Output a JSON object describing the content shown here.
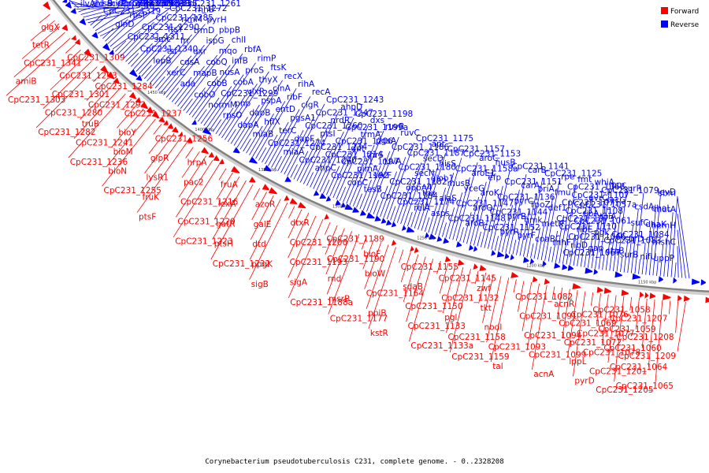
{
  "caption": "Corynebacterium pseudotuberculosis C231, complete genome. - 0..2328208",
  "legend": [
    {
      "label": "Forward",
      "color": "#ff0000"
    },
    {
      "label": "Reverse",
      "color": "#0000ff"
    }
  ],
  "colors": {
    "forward": "#ff0000",
    "reverse": "#0000ff",
    "backbone": "#808080"
  },
  "ticks": [
    "1450 kbp",
    "1400 kbp",
    "1350 kbp",
    "1300 kbp",
    "1250 kbp",
    "1200 kbp",
    "1150 kbp"
  ],
  "reverse_labels": [
    "ilvA",
    "hisB",
    "hisC",
    "trpC2",
    "CpC231_1335",
    "ald",
    "acyP",
    "CpC231_1331",
    "glnB",
    "mutM1",
    "CpC231_1319",
    "CpC231_1328",
    "CpC231_1313",
    "rnc",
    "manP",
    "glnD",
    "rpsP",
    "ffh",
    "rplS",
    "rpsB",
    "CpC231_1311",
    "CpC231_1290",
    "CpC231_1285",
    "CpC231_1272",
    "CpC231_1261",
    "CpC231_1340",
    "smc",
    "ftsY",
    "rimM",
    "rnhB",
    "lepB",
    "tsf",
    "frr",
    "trmD",
    "pyrH",
    "xerC",
    "cdsA",
    "dxr",
    "ispG",
    "pbpB",
    "ada",
    "mapB",
    "cobQ",
    "mqo",
    "chlI",
    "cobO",
    "cobB",
    "nusA",
    "infB",
    "rbfA",
    "normM",
    "CpC231_1299",
    "cobA",
    "proS",
    "rimP",
    "rpsO",
    "pnp",
    "vlxR",
    "thyX",
    "ftsK",
    "dapA",
    "dapB",
    "pspA",
    "cinA",
    "recX",
    "miaB",
    "hflX",
    "entD",
    "ribF",
    "rihA",
    "CpC231_1274",
    "terC",
    "pgsA1",
    "clgR",
    "recA",
    "miaA",
    "dapF",
    "CpC231_1260",
    "CpC231_1247",
    "CpC231_1243",
    "CpC231_1240",
    "CpC231_1234",
    "ptsI",
    "nrdR",
    "ahpD",
    "ahpC",
    "CpC231_1214",
    "CpC231_1206",
    "CpC231_1199a",
    "CpC231_1198",
    "CpC231_1192",
    "CpC231_1197",
    "dut",
    "trmA",
    "dxs",
    "copC",
    "pimA",
    "thrS",
    "pgsA",
    "ruvB",
    "tesB",
    "secF",
    "ruvA",
    "CpC231_1186",
    "ruvC",
    "CpC231_1184",
    "CpC231_1182",
    "CpC231_1180",
    "CpC231_1187",
    "CpC231_1175",
    "CpC231_1174",
    "oppA4",
    "secN",
    "secD",
    "apt",
    "relA",
    "tpx",
    "glob1",
    "hisS",
    "CpC231_1157",
    "asps",
    "alaS",
    "musB",
    "CpC231_1158a",
    "CpC231_1153",
    "CpC231_1148",
    "CpC231_1147",
    "yceG",
    "aroE1",
    "aroC",
    "aroB",
    "aroQ",
    "aroK",
    "efp",
    "nusB",
    "CpC231_1152",
    "CpC231_1144",
    "CpC231_1136",
    "CpC231_1151",
    "CpC231_1141",
    "pyrR",
    "pyrB",
    "pyrC",
    "carA",
    "carB",
    "pyrF",
    "gmk",
    "rpoZ",
    "priA",
    "CpC231_1125",
    "coaBC",
    "metK",
    "def1",
    "fmu",
    "rpe",
    "rnhF",
    "CpC231_1110",
    "CpC231_1108",
    "CpC231_1107",
    "fmt",
    "ribD",
    "ribE",
    "ribA",
    "uvrC",
    "whiA",
    "gap",
    "pgk",
    "tpiA",
    "secG",
    "ppc",
    "ctaB",
    "CpC231_1084",
    "CpC231_1073",
    "CpC231_1071",
    "CpC231_1068",
    "CpC231_1067",
    "CpC231_1066",
    "CpC231_1061",
    "CpC231_1057a",
    "surR",
    "surB",
    "surD",
    "sufC",
    "csdA",
    "CpC231_1079",
    "nifU",
    "CpC231_1083",
    "dhaK",
    "dhaL",
    "levD",
    "uppP",
    "mshC",
    "hemH",
    "mutA",
    "sbm"
  ],
  "forward_labels": [
    "glgX",
    "tetR",
    "CpC231_1341",
    "amiB",
    "CpC231_1303",
    "CpC231_1309",
    "CpC231_1293",
    "CpC231_1301",
    "CpC231_1280",
    "CpC231_1282",
    "CpC231_1284",
    "CpC231_1292",
    "truB",
    "CpC231_1241",
    "CpC231_1236",
    "CpC231_1237",
    "bioY",
    "bioM",
    "bioN",
    "CpC231_1255",
    "CpC231_1256",
    "glpR",
    "lysR1",
    "fruK",
    "ptsF",
    "hrpA",
    "pac2",
    "CpC231_1216",
    "CpC231_1220",
    "CpC231_1223",
    "fruA",
    "lexA",
    "gatR",
    "ptsH",
    "CpC231_1232",
    "azoR",
    "galE",
    "dtd",
    "ppgK",
    "sigB",
    "dtxR",
    "CpC231_1200",
    "CpC231_1193",
    "sigA",
    "CpC231_1188a",
    "CpC231_1189",
    "CpC231_1190",
    "rnd",
    "msrB",
    "CpC231_1177",
    "bioF",
    "bioW",
    "CpC231_1164",
    "ppiB",
    "kstR",
    "CpC231_1155",
    "sdaB",
    "CpC231_1150",
    "CpC231_1133",
    "CpC231_1133a",
    "CpC231_1145",
    "CpC231_1132",
    "pgl",
    "CpC231_1158",
    "CpC231_1159",
    "zwf",
    "tkt",
    "nodI",
    "CpC231_1093",
    "tal",
    "CpC231_1082",
    "CpC231_1091",
    "CpC231_1094",
    "CpC231_1099",
    "acnA",
    "acnR",
    "CpC231_1069",
    "CpC231_1072",
    "lppL",
    "pyrD",
    "CpC231_1058",
    "CpC231_1059",
    "CpC231_1060",
    "CpC231_1064",
    "CpC231_1065",
    "CpC231_1076",
    "CpC231_1077",
    "CpC231_1078",
    "CpC231_1201",
    "CpC231_1205",
    "CpC231_1207",
    "CpC231_1208",
    "CpC231_1209"
  ]
}
